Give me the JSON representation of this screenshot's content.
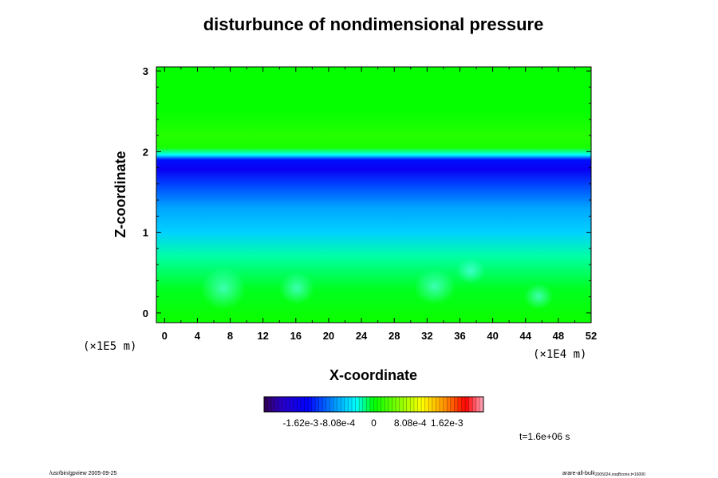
{
  "chart_data": {
    "type": "heatmap",
    "title": "disturbunce of nondimensional pressure",
    "xlabel": "X-coordinate",
    "ylabel": "Z-coordinate",
    "x_ticks": [
      "0",
      "4",
      "8",
      "12",
      "16",
      "20",
      "24",
      "28",
      "32",
      "36",
      "40",
      "44",
      "48",
      "52"
    ],
    "y_ticks": [
      "0",
      "1",
      "2",
      "3"
    ],
    "xlim": [
      -1,
      52
    ],
    "ylim": [
      -0.12,
      3.05
    ],
    "x_unit": "(×1E4 m)",
    "y_unit": "(×1E5 m)",
    "colorbar": {
      "labels": [
        "-1.62e-3",
        "-8.08e-4",
        "0",
        "8.08e-4",
        "1.62e-3"
      ],
      "range": [
        -0.00243,
        0.00243
      ]
    },
    "field_profile": [
      {
        "z": -0.1,
        "value": 5e-05
      },
      {
        "z": 0.3,
        "value": -5e-05
      },
      {
        "z": 0.7,
        "value": -0.00025
      },
      {
        "z": 1.0,
        "value": -0.0006
      },
      {
        "z": 1.3,
        "value": -0.0008
      },
      {
        "z": 1.6,
        "value": -0.0012
      },
      {
        "z": 1.78,
        "value": -0.0016
      },
      {
        "z": 1.9,
        "value": -0.0014
      },
      {
        "z": 1.96,
        "value": -0.0004
      },
      {
        "z": 2.05,
        "value": 0.0001
      },
      {
        "z": 2.2,
        "value": 0.00015
      },
      {
        "z": 2.5,
        "value": 2e-05
      },
      {
        "z": 3.05,
        "value": 2e-05
      }
    ],
    "time_label": "t=1.6e+06 s"
  },
  "footer": {
    "left": "/usr/bin/gpview 2005-09-25",
    "right_main": "arare-all-bulk",
    "right_sub": "2005024,noqBzone,t=16000"
  },
  "colors": {
    "green": "#00ff00",
    "cyan": "#00ffff",
    "blue": "#0000ff",
    "red": "#ff0000"
  }
}
